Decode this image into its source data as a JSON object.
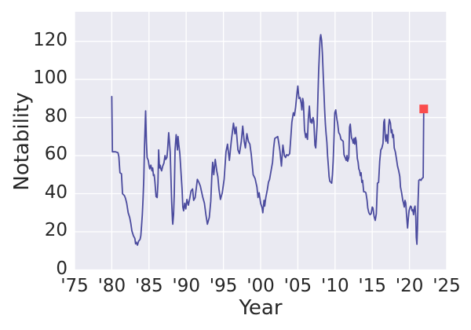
{
  "figure": {
    "xlabel": "Year",
    "ylabel": "Notability",
    "x_ticks": [
      "'75",
      "'80",
      "'85",
      "'90",
      "'95",
      "'00",
      "'05",
      "'10",
      "'15",
      "'20",
      "'25"
    ],
    "x_tick_years": [
      1975,
      1980,
      1985,
      1990,
      1995,
      2000,
      2005,
      2010,
      2015,
      2020,
      2025
    ],
    "y_ticks": [
      0,
      20,
      40,
      60,
      80,
      100,
      120
    ]
  },
  "colors": {
    "figure_bg": "#ffffff",
    "axes_bg": "#eaeaf2",
    "grid": "#ffffff",
    "line": "#4b4b9e",
    "marker": "#fa4d4d",
    "text": "#262626"
  },
  "chart_data": {
    "type": "line",
    "title": "",
    "xlabel": "Year",
    "ylabel": "Notability",
    "xlim": [
      1975,
      2025
    ],
    "ylim": [
      0,
      135.5
    ],
    "grid": true,
    "legend": null,
    "x_ticks": [
      1975,
      1980,
      1985,
      1990,
      1995,
      2000,
      2005,
      2010,
      2015,
      2020,
      2025
    ],
    "y_ticks": [
      0,
      20,
      40,
      60,
      80,
      100,
      120
    ],
    "highlight_point": {
      "x": 2021.92,
      "y": 84.5,
      "marker": "square",
      "color": "#fa4d4d",
      "size": 11
    },
    "series": [
      {
        "name": "Notability",
        "color": "#4b4b9e",
        "points": [
          [
            1980.0,
            91
          ],
          [
            1980.08,
            62
          ],
          [
            1980.5,
            62
          ],
          [
            1980.83,
            61.5
          ],
          [
            1980.95,
            59.5
          ],
          [
            1981.1,
            51
          ],
          [
            1981.3,
            50.5
          ],
          [
            1981.45,
            40
          ],
          [
            1981.7,
            39
          ],
          [
            1981.85,
            37.5
          ],
          [
            1982.0,
            35
          ],
          [
            1982.2,
            30
          ],
          [
            1982.4,
            27.5
          ],
          [
            1982.55,
            24.5
          ],
          [
            1982.7,
            20.5
          ],
          [
            1982.9,
            18
          ],
          [
            1983.1,
            16.5
          ],
          [
            1983.2,
            13.7
          ],
          [
            1983.3,
            14.5
          ],
          [
            1983.45,
            13
          ],
          [
            1983.6,
            15
          ],
          [
            1983.8,
            16
          ],
          [
            1983.9,
            18
          ],
          [
            1984.0,
            23
          ],
          [
            1984.1,
            29
          ],
          [
            1984.2,
            37
          ],
          [
            1984.3,
            48
          ],
          [
            1984.4,
            65
          ],
          [
            1984.55,
            83.5
          ],
          [
            1984.65,
            67
          ],
          [
            1984.75,
            59
          ],
          [
            1984.9,
            57.5
          ],
          [
            1985.0,
            55
          ],
          [
            1985.1,
            53
          ],
          [
            1985.25,
            55
          ],
          [
            1985.4,
            52
          ],
          [
            1985.5,
            53.5
          ],
          [
            1985.6,
            49.5
          ],
          [
            1985.7,
            50
          ],
          [
            1985.8,
            46
          ],
          [
            1985.95,
            38.5
          ],
          [
            1986.1,
            38
          ],
          [
            1986.2,
            45.5
          ],
          [
            1986.3,
            63
          ],
          [
            1986.4,
            53.5
          ],
          [
            1986.5,
            55
          ],
          [
            1986.6,
            53
          ],
          [
            1986.7,
            52
          ],
          [
            1986.85,
            54.5
          ],
          [
            1987.0,
            56
          ],
          [
            1987.15,
            60
          ],
          [
            1987.25,
            58
          ],
          [
            1987.4,
            59
          ],
          [
            1987.5,
            63
          ],
          [
            1987.65,
            72
          ],
          [
            1987.75,
            67
          ],
          [
            1987.85,
            62
          ],
          [
            1987.95,
            48
          ],
          [
            1988.05,
            35.5
          ],
          [
            1988.15,
            26
          ],
          [
            1988.2,
            24
          ],
          [
            1988.3,
            29
          ],
          [
            1988.4,
            40
          ],
          [
            1988.5,
            63
          ],
          [
            1988.65,
            71
          ],
          [
            1988.75,
            67
          ],
          [
            1988.82,
            63
          ],
          [
            1988.9,
            70
          ],
          [
            1989.0,
            66
          ],
          [
            1989.15,
            61
          ],
          [
            1989.3,
            51
          ],
          [
            1989.45,
            42
          ],
          [
            1989.55,
            33
          ],
          [
            1989.65,
            31
          ],
          [
            1989.8,
            35
          ],
          [
            1989.95,
            32
          ],
          [
            1990.1,
            37
          ],
          [
            1990.3,
            34
          ],
          [
            1990.5,
            38
          ],
          [
            1990.65,
            41.5
          ],
          [
            1990.85,
            42.5
          ],
          [
            1991.0,
            36.5
          ],
          [
            1991.2,
            38
          ],
          [
            1991.5,
            47.5
          ],
          [
            1991.7,
            46
          ],
          [
            1991.9,
            44
          ],
          [
            1992.2,
            38.5
          ],
          [
            1992.45,
            35
          ],
          [
            1992.65,
            29
          ],
          [
            1992.85,
            24
          ],
          [
            1993.1,
            27.5
          ],
          [
            1993.3,
            36
          ],
          [
            1993.45,
            50
          ],
          [
            1993.55,
            56.5
          ],
          [
            1993.7,
            50
          ],
          [
            1993.9,
            58
          ],
          [
            1994.1,
            52
          ],
          [
            1994.25,
            49
          ],
          [
            1994.4,
            42.5
          ],
          [
            1994.6,
            37
          ],
          [
            1994.85,
            40.5
          ],
          [
            1995.1,
            47.5
          ],
          [
            1995.35,
            62
          ],
          [
            1995.55,
            66
          ],
          [
            1995.8,
            57.5
          ],
          [
            1996.05,
            67.5
          ],
          [
            1996.35,
            77
          ],
          [
            1996.55,
            71.5
          ],
          [
            1996.7,
            75
          ],
          [
            1996.95,
            63
          ],
          [
            1997.15,
            61
          ],
          [
            1997.4,
            67.5
          ],
          [
            1997.6,
            75.5
          ],
          [
            1997.8,
            67.5
          ],
          [
            1997.95,
            64
          ],
          [
            1998.15,
            71.5
          ],
          [
            1998.35,
            67.5
          ],
          [
            1998.55,
            66
          ],
          [
            1998.75,
            60.5
          ],
          [
            1999.0,
            50
          ],
          [
            1999.25,
            48
          ],
          [
            1999.5,
            43.5
          ],
          [
            1999.65,
            38
          ],
          [
            1999.8,
            40.5
          ],
          [
            2000.0,
            35
          ],
          [
            2000.2,
            32.5
          ],
          [
            2000.3,
            30
          ],
          [
            2000.45,
            36.5
          ],
          [
            2000.55,
            33.5
          ],
          [
            2000.7,
            38
          ],
          [
            2000.9,
            42
          ],
          [
            2001.05,
            46
          ],
          [
            2001.2,
            47.5
          ],
          [
            2001.4,
            52
          ],
          [
            2001.6,
            56.5
          ],
          [
            2001.75,
            64
          ],
          [
            2001.9,
            69
          ],
          [
            2002.1,
            69.5
          ],
          [
            2002.3,
            70
          ],
          [
            2002.45,
            66.5
          ],
          [
            2002.6,
            62.5
          ],
          [
            2002.8,
            54.5
          ],
          [
            2003.0,
            65.5
          ],
          [
            2003.2,
            60
          ],
          [
            2003.35,
            59
          ],
          [
            2003.5,
            60.5
          ],
          [
            2003.7,
            60
          ],
          [
            2003.9,
            61
          ],
          [
            2004.05,
            69
          ],
          [
            2004.2,
            77.5
          ],
          [
            2004.4,
            82.5
          ],
          [
            2004.55,
            81
          ],
          [
            2004.7,
            85.5
          ],
          [
            2004.9,
            93.5
          ],
          [
            2005.0,
            96.5
          ],
          [
            2005.15,
            90
          ],
          [
            2005.3,
            90.5
          ],
          [
            2005.45,
            87.5
          ],
          [
            2005.55,
            84
          ],
          [
            2005.65,
            90
          ],
          [
            2005.75,
            88
          ],
          [
            2005.9,
            73.5
          ],
          [
            2006.05,
            69.5
          ],
          [
            2006.15,
            71.5
          ],
          [
            2006.3,
            68.5
          ],
          [
            2006.4,
            79
          ],
          [
            2006.55,
            86
          ],
          [
            2006.7,
            77.5
          ],
          [
            2006.8,
            79
          ],
          [
            2006.9,
            77
          ],
          [
            2007.05,
            80
          ],
          [
            2007.15,
            78
          ],
          [
            2007.3,
            65.5
          ],
          [
            2007.4,
            64
          ],
          [
            2007.5,
            70
          ],
          [
            2007.6,
            76.5
          ],
          [
            2007.7,
            91
          ],
          [
            2007.8,
            104
          ],
          [
            2007.9,
            114
          ],
          [
            2008.0,
            121.5
          ],
          [
            2008.08,
            123.5
          ],
          [
            2008.2,
            120.5
          ],
          [
            2008.3,
            113.5
          ],
          [
            2008.4,
            104
          ],
          [
            2008.5,
            94
          ],
          [
            2008.6,
            84.5
          ],
          [
            2008.7,
            76.5
          ],
          [
            2008.8,
            71.5
          ],
          [
            2008.9,
            67
          ],
          [
            2009.0,
            60
          ],
          [
            2009.1,
            54.5
          ],
          [
            2009.2,
            49
          ],
          [
            2009.3,
            46.5
          ],
          [
            2009.45,
            46
          ],
          [
            2009.55,
            45.5
          ],
          [
            2009.65,
            50
          ],
          [
            2009.75,
            57
          ],
          [
            2009.85,
            68
          ],
          [
            2009.97,
            82.5
          ],
          [
            2010.1,
            84
          ],
          [
            2010.25,
            79
          ],
          [
            2010.35,
            77
          ],
          [
            2010.5,
            72
          ],
          [
            2010.65,
            71
          ],
          [
            2010.8,
            68.5
          ],
          [
            2010.95,
            68
          ],
          [
            2011.1,
            67.5
          ],
          [
            2011.2,
            60.5
          ],
          [
            2011.35,
            59
          ],
          [
            2011.5,
            57.5
          ],
          [
            2011.6,
            60
          ],
          [
            2011.7,
            57
          ],
          [
            2011.85,
            59
          ],
          [
            2011.95,
            75
          ],
          [
            2012.05,
            76.5
          ],
          [
            2012.2,
            69.5
          ],
          [
            2012.35,
            68
          ],
          [
            2012.45,
            66.5
          ],
          [
            2012.55,
            69
          ],
          [
            2012.65,
            66
          ],
          [
            2012.75,
            69.5
          ],
          [
            2012.85,
            67.5
          ],
          [
            2013.0,
            58.5
          ],
          [
            2013.1,
            56.5
          ],
          [
            2013.2,
            53
          ],
          [
            2013.3,
            52
          ],
          [
            2013.4,
            49.5
          ],
          [
            2013.5,
            51
          ],
          [
            2013.6,
            46
          ],
          [
            2013.7,
            47
          ],
          [
            2013.85,
            41
          ],
          [
            2014.0,
            41
          ],
          [
            2014.15,
            40.5
          ],
          [
            2014.3,
            36.5
          ],
          [
            2014.4,
            32.5
          ],
          [
            2014.55,
            30
          ],
          [
            2014.7,
            29
          ],
          [
            2014.85,
            29.5
          ],
          [
            2015.0,
            33
          ],
          [
            2015.1,
            32.5
          ],
          [
            2015.25,
            28
          ],
          [
            2015.4,
            26
          ],
          [
            2015.55,
            29.5
          ],
          [
            2015.7,
            45.5
          ],
          [
            2015.85,
            46
          ],
          [
            2016.0,
            57
          ],
          [
            2016.15,
            63
          ],
          [
            2016.3,
            64
          ],
          [
            2016.45,
            66.5
          ],
          [
            2016.55,
            77.5
          ],
          [
            2016.65,
            79
          ],
          [
            2016.75,
            69.5
          ],
          [
            2016.85,
            67.5
          ],
          [
            2016.95,
            71
          ],
          [
            2017.1,
            66.5
          ],
          [
            2017.2,
            75.5
          ],
          [
            2017.3,
            79
          ],
          [
            2017.45,
            77
          ],
          [
            2017.55,
            72
          ],
          [
            2017.65,
            73.5
          ],
          [
            2017.75,
            69.5
          ],
          [
            2017.85,
            71
          ],
          [
            2017.95,
            64
          ],
          [
            2018.1,
            62
          ],
          [
            2018.25,
            58.5
          ],
          [
            2018.4,
            54.5
          ],
          [
            2018.55,
            52
          ],
          [
            2018.7,
            49
          ],
          [
            2018.8,
            43.5
          ],
          [
            2018.95,
            40.5
          ],
          [
            2019.1,
            36.5
          ],
          [
            2019.2,
            35
          ],
          [
            2019.3,
            33
          ],
          [
            2019.4,
            36.5
          ],
          [
            2019.5,
            35
          ],
          [
            2019.6,
            29.5
          ],
          [
            2019.7,
            24
          ],
          [
            2019.75,
            22
          ],
          [
            2019.85,
            27
          ],
          [
            2019.95,
            31
          ],
          [
            2020.05,
            32.5
          ],
          [
            2020.15,
            33.5
          ],
          [
            2020.25,
            33
          ],
          [
            2020.35,
            31
          ],
          [
            2020.45,
            31.5
          ],
          [
            2020.55,
            29
          ],
          [
            2020.65,
            32.5
          ],
          [
            2020.75,
            33.5
          ],
          [
            2020.85,
            27.5
          ],
          [
            2020.92,
            17
          ],
          [
            2021.0,
            13.5
          ],
          [
            2021.08,
            22
          ],
          [
            2021.15,
            35
          ],
          [
            2021.25,
            47
          ],
          [
            2021.4,
            47.5
          ],
          [
            2021.55,
            47
          ],
          [
            2021.7,
            48
          ],
          [
            2021.85,
            48.5
          ],
          [
            2021.92,
            84.5
          ]
        ]
      }
    ]
  }
}
